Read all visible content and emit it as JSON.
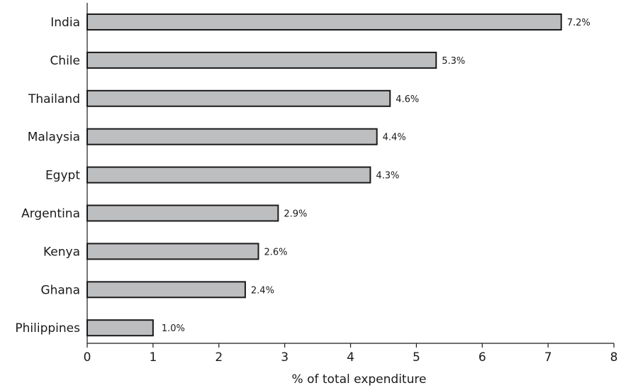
{
  "chart_data": {
    "type": "bar",
    "orientation": "horizontal",
    "title": "",
    "xlabel": "% of total expenditure",
    "ylabel": "",
    "xlim": [
      0,
      8
    ],
    "xticks": [
      0,
      1,
      2,
      3,
      4,
      5,
      6,
      7,
      8
    ],
    "grid": false,
    "categories": [
      "India",
      "Chile",
      "Thailand",
      "Malaysia",
      "Egypt",
      "Argentina",
      "Kenya",
      "Ghana",
      "Philippines"
    ],
    "values": [
      7.2,
      5.3,
      4.6,
      4.4,
      4.3,
      2.9,
      2.6,
      2.4,
      1.0
    ],
    "value_labels": [
      "7.2%",
      "5.3%",
      "4.6%",
      "4.4%",
      "4.3%",
      "2.9%",
      "2.6%",
      "2.4%",
      "1.0%"
    ],
    "bar_color": "#bdbec0",
    "bar_outline_color": "#1a1a1a"
  }
}
